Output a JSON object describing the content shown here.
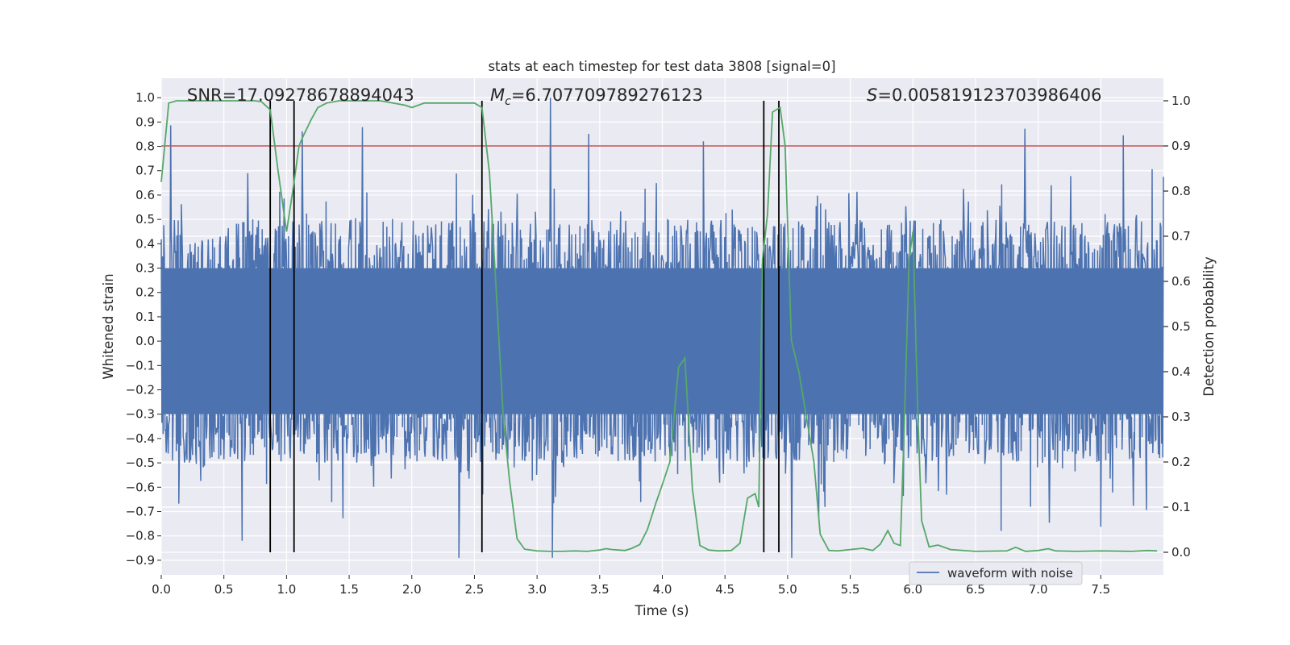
{
  "chart_data": {
    "type": "line",
    "title": "stats at each timestep for test data 3808 [signal=0]",
    "xlabel": "Time (s)",
    "ylabel_left": "Whitened strain",
    "ylabel_right": "Detection probability",
    "xlim": [
      0,
      8.0
    ],
    "ylim_left": [
      -0.96,
      1.08
    ],
    "ylim_right": [
      -0.05,
      1.05
    ],
    "x_ticks": [
      0.0,
      0.5,
      1.0,
      1.5,
      2.0,
      2.5,
      3.0,
      3.5,
      4.0,
      4.5,
      5.0,
      5.5,
      6.0,
      6.5,
      7.0,
      7.5
    ],
    "x_tick_labels": [
      "0.0",
      "0.5",
      "1.0",
      "1.5",
      "2.0",
      "2.5",
      "3.0",
      "3.5",
      "4.0",
      "4.5",
      "5.0",
      "5.5",
      "6.0",
      "6.5",
      "7.0",
      "7.5"
    ],
    "y_left_ticks": [
      1.0,
      0.9,
      0.8,
      0.7,
      0.6,
      0.5,
      0.4,
      0.3,
      0.2,
      0.1,
      0.0,
      -0.1,
      -0.2,
      -0.3,
      -0.4,
      -0.5,
      -0.6,
      -0.7,
      -0.8,
      -0.9
    ],
    "y_left_tick_labels": [
      "1.0",
      "0.9",
      "0.8",
      "0.7",
      "0.6",
      "0.5",
      "0.4",
      "0.3",
      "0.2",
      "0.1",
      "0.0",
      "−0.1",
      "−0.2",
      "−0.3",
      "−0.4",
      "−0.5",
      "−0.6",
      "−0.7",
      "−0.8",
      "−0.9"
    ],
    "y_right_ticks": [
      1.0,
      0.9,
      0.8,
      0.7,
      0.6,
      0.5,
      0.4,
      0.3,
      0.2,
      0.1,
      0.0
    ],
    "y_right_tick_labels": [
      "1.0",
      "0.9",
      "0.8",
      "0.7",
      "0.6",
      "0.5",
      "0.4",
      "0.3",
      "0.2",
      "0.1",
      "0.0"
    ],
    "annotations": {
      "snr": "SNR=17.09278678894043",
      "mc_symbol": "M",
      "mc_sub": "c",
      "mc_value": "=6.707709789276123",
      "s_symbol": "S",
      "s_value": "=0.005819123703986406"
    },
    "threshold_right": 0.9,
    "vertical_lines_x": [
      0.87,
      1.06,
      2.56,
      4.81,
      4.93
    ],
    "legend": {
      "label": "waveform with noise",
      "position": "lower-right"
    },
    "series": [
      {
        "name": "waveform with noise",
        "axis": "left",
        "style": "noise",
        "duration_s": 8.0,
        "sample_count": 1600,
        "envelope_p95": [
          -0.5,
          0.5
        ],
        "envelope_extreme": [
          -0.89,
          1.0
        ],
        "seed": 3808
      },
      {
        "name": "detection probability",
        "axis": "right",
        "x": [
          0.0,
          0.06,
          0.12,
          0.25,
          0.5,
          0.75,
          0.8,
          0.87,
          0.93,
          1.0,
          1.05,
          1.1,
          1.13,
          1.2,
          1.25,
          1.32,
          1.42,
          1.5,
          1.75,
          1.95,
          2.0,
          2.1,
          2.25,
          2.5,
          2.56,
          2.62,
          2.68,
          2.73,
          2.78,
          2.84,
          2.9,
          3.0,
          3.1,
          3.2,
          3.3,
          3.4,
          3.5,
          3.55,
          3.6,
          3.7,
          3.75,
          3.82,
          3.88,
          3.95,
          4.0,
          4.06,
          4.13,
          4.18,
          4.24,
          4.3,
          4.37,
          4.45,
          4.55,
          4.62,
          4.68,
          4.74,
          4.77,
          4.8,
          4.84,
          4.88,
          4.94,
          4.98,
          5.03,
          5.09,
          5.15,
          5.21,
          5.26,
          5.33,
          5.4,
          5.5,
          5.6,
          5.68,
          5.74,
          5.8,
          5.85,
          5.9,
          5.93,
          5.97,
          6.0,
          6.04,
          6.07,
          6.13,
          6.2,
          6.3,
          6.5,
          6.75,
          6.82,
          6.9,
          7.0,
          7.08,
          7.14,
          7.3,
          7.5,
          7.75,
          7.87,
          7.95
        ],
        "values": [
          0.82,
          0.995,
          1.0,
          1.0,
          1.0,
          1.0,
          0.998,
          0.98,
          0.85,
          0.71,
          0.8,
          0.9,
          0.92,
          0.96,
          0.985,
          0.995,
          1.0,
          1.0,
          1.0,
          0.99,
          0.985,
          0.995,
          0.995,
          0.995,
          0.985,
          0.84,
          0.55,
          0.3,
          0.16,
          0.03,
          0.007,
          0.003,
          0.002,
          0.002,
          0.003,
          0.002,
          0.005,
          0.008,
          0.006,
          0.004,
          0.008,
          0.017,
          0.05,
          0.11,
          0.15,
          0.2,
          0.41,
          0.43,
          0.14,
          0.015,
          0.005,
          0.003,
          0.004,
          0.02,
          0.12,
          0.13,
          0.1,
          0.65,
          0.75,
          0.975,
          0.985,
          0.9,
          0.47,
          0.4,
          0.3,
          0.2,
          0.04,
          0.004,
          0.003,
          0.006,
          0.009,
          0.004,
          0.018,
          0.048,
          0.02,
          0.015,
          0.27,
          0.65,
          0.71,
          0.3,
          0.07,
          0.012,
          0.016,
          0.006,
          0.002,
          0.003,
          0.011,
          0.002,
          0.004,
          0.008,
          0.003,
          0.002,
          0.003,
          0.002,
          0.004,
          0.003
        ],
        "color": "#55a868"
      }
    ],
    "colors": {
      "plot_bg": "#eaeaf2",
      "grid": "#ffffff",
      "noise": "#4c72b0",
      "probability": "#55a868",
      "threshold": "#c44e52",
      "vline": "#000000"
    }
  }
}
